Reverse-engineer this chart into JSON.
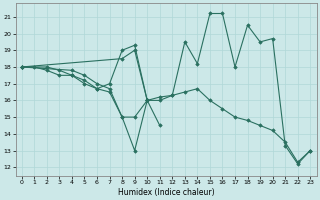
{
  "xlabel": "Humidex (Indice chaleur)",
  "xlim": [
    -0.5,
    23.5
  ],
  "ylim": [
    11.5,
    21.8
  ],
  "yticks": [
    12,
    13,
    14,
    15,
    16,
    17,
    18,
    19,
    20,
    21
  ],
  "xticks": [
    0,
    1,
    2,
    3,
    4,
    5,
    6,
    7,
    8,
    9,
    10,
    11,
    12,
    13,
    14,
    15,
    16,
    17,
    18,
    19,
    20,
    21,
    22,
    23
  ],
  "bg_color": "#cce8e8",
  "line_color": "#2a7060",
  "series": [
    {
      "x": [
        0,
        1,
        2,
        3,
        4,
        5,
        6,
        7,
        8,
        9,
        10,
        11,
        12,
        13,
        14,
        15,
        16,
        17,
        18,
        19,
        20,
        21,
        22,
        23
      ],
      "y": [
        18,
        18,
        17.8,
        17.5,
        17.5,
        17.2,
        16.7,
        16.5,
        15.0,
        15.0,
        16.0,
        16.2,
        16.3,
        16.5,
        16.7,
        16.0,
        15.5,
        15.0,
        14.8,
        14.5,
        14.2,
        13.5,
        12.3,
        13.0
      ]
    },
    {
      "x": [
        0,
        2,
        3,
        4,
        5,
        6,
        7,
        8,
        9,
        10,
        11,
        12,
        13,
        14,
        15,
        16,
        17,
        18,
        19,
        20,
        21,
        22,
        23
      ],
      "y": [
        18,
        18,
        17.8,
        17.5,
        17.0,
        16.7,
        17.0,
        19.0,
        19.3,
        16.0,
        16.0,
        16.3,
        19.5,
        18.2,
        21.2,
        21.2,
        18.0,
        20.5,
        19.5,
        19.7,
        13.3,
        12.2,
        13.0
      ]
    },
    {
      "x": [
        0,
        4,
        5,
        6,
        7,
        8,
        9,
        10,
        11
      ],
      "y": [
        18,
        17.8,
        17.5,
        17.0,
        16.7,
        15.0,
        13.0,
        16.0,
        14.5
      ]
    },
    {
      "x": [
        0,
        8,
        9,
        10
      ],
      "y": [
        18,
        18.5,
        19.0,
        16.0
      ]
    }
  ]
}
